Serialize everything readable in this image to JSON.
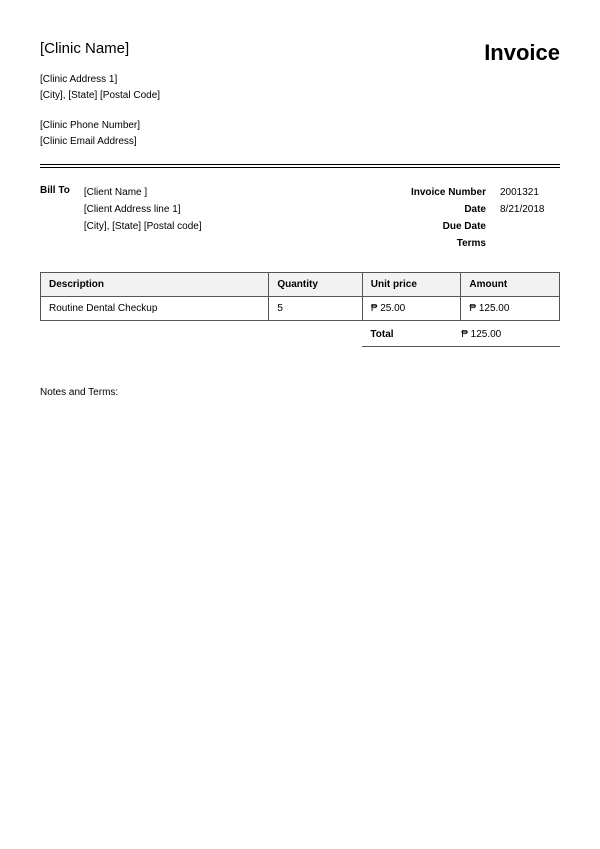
{
  "clinic": {
    "name": "[Clinic Name]",
    "address1": "[Clinic Address 1]",
    "city_state_postal": "[City], [State] [Postal Code]",
    "phone": "[Clinic Phone Number]",
    "email": "[Clinic Email Address]"
  },
  "invoice_title": "Invoice",
  "bill_to_label": "Bill To",
  "client": {
    "name": "[Client Name ]",
    "address1": "[Client Address line 1]",
    "city_state_postal": "[City], [State] [Postal code]"
  },
  "meta": {
    "invoice_number_label": "Invoice Number",
    "invoice_number": "2001321",
    "date_label": "Date",
    "date": "8/21/2018",
    "due_date_label": "Due Date",
    "due_date": "",
    "terms_label": "Terms",
    "terms": ""
  },
  "table": {
    "columns": [
      "Description",
      "Quantity",
      "Unit price",
      "Amount"
    ],
    "rows": [
      {
        "description": "Routine Dental Checkup",
        "quantity": "5",
        "unit_price": "₱ 25.00",
        "amount": "₱ 125.00"
      }
    ],
    "column_widths_pct": [
      44,
      18,
      19,
      19
    ],
    "header_bg": "#f2f2f2",
    "border_color": "#555555"
  },
  "total": {
    "label": "Total",
    "value": "₱ 125.00"
  },
  "notes_label": "Notes and Terms:",
  "colors": {
    "background": "#ffffff",
    "text": "#000000",
    "divider": "#000000"
  },
  "typography": {
    "base_font_size_pt": 7.5,
    "clinic_name_font_size_pt": 11,
    "invoice_title_font_size_pt": 16,
    "font_family": "Arial"
  }
}
